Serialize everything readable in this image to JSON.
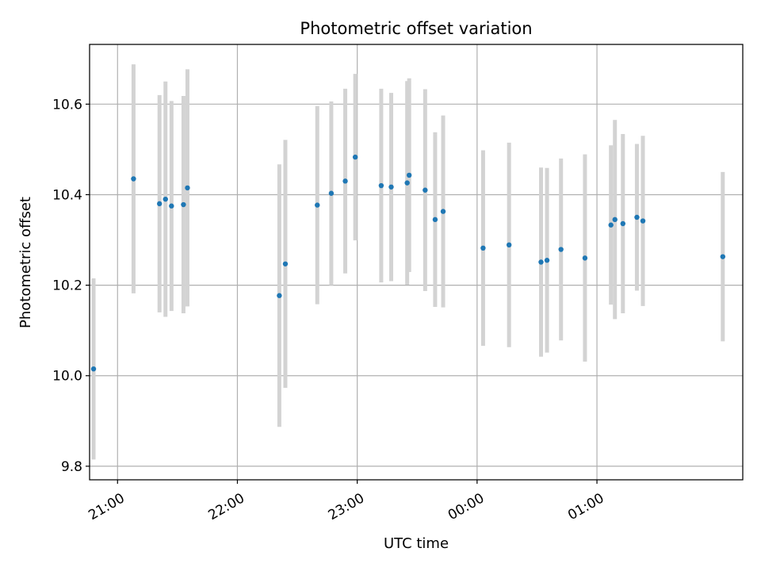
{
  "chart_data": {
    "type": "scatter",
    "title": "Photometric offset variation",
    "xlabel": "UTC time",
    "ylabel": "Photometric offset",
    "x_axis_type": "time",
    "xlim": [
      "20:46",
      "26:13"
    ],
    "ylim": [
      9.77,
      10.732
    ],
    "grid": true,
    "x_ticks": [
      {
        "time": "21:00",
        "label": "21:00"
      },
      {
        "time": "22:00",
        "label": "22:00"
      },
      {
        "time": "23:00",
        "label": "23:00"
      },
      {
        "time": "24:00",
        "label": "00:00"
      },
      {
        "time": "25:00",
        "label": "01:00"
      }
    ],
    "y_ticks": [
      9.8,
      10.0,
      10.2,
      10.4,
      10.6
    ],
    "y_tick_labels": [
      "9.8",
      "10.0",
      "10.2",
      "10.4",
      "10.6"
    ],
    "colors": {
      "marker": "#1f77b4",
      "errorbar": "#d3d3d3",
      "grid": "#b0b0b0"
    },
    "series": [
      {
        "points": [
          {
            "x": "20:48",
            "y": 10.015,
            "err": 0.2
          },
          {
            "x": "21:08",
            "y": 10.435,
            "err": 0.253
          },
          {
            "x": "21:21",
            "y": 10.38,
            "err": 0.24
          },
          {
            "x": "21:24",
            "y": 10.39,
            "err": 0.26
          },
          {
            "x": "21:27",
            "y": 10.375,
            "err": 0.232
          },
          {
            "x": "21:33",
            "y": 10.378,
            "err": 0.24
          },
          {
            "x": "21:35",
            "y": 10.415,
            "err": 0.262
          },
          {
            "x": "22:21",
            "y": 10.177,
            "err": 0.29
          },
          {
            "x": "22:24",
            "y": 10.247,
            "err": 0.274
          },
          {
            "x": "22:40",
            "y": 10.377,
            "err": 0.219
          },
          {
            "x": "22:47",
            "y": 10.403,
            "err": 0.203
          },
          {
            "x": "22:54",
            "y": 10.43,
            "err": 0.204
          },
          {
            "x": "22:59",
            "y": 10.483,
            "err": 0.184
          },
          {
            "x": "23:12",
            "y": 10.42,
            "err": 0.214
          },
          {
            "x": "23:17",
            "y": 10.417,
            "err": 0.208
          },
          {
            "x": "23:25",
            "y": 10.426,
            "err": 0.225
          },
          {
            "x": "23:26",
            "y": 10.443,
            "err": 0.214
          },
          {
            "x": "23:34",
            "y": 10.41,
            "err": 0.223
          },
          {
            "x": "23:39",
            "y": 10.345,
            "err": 0.193
          },
          {
            "x": "23:43",
            "y": 10.363,
            "err": 0.212
          },
          {
            "x": "24:03",
            "y": 10.282,
            "err": 0.216
          },
          {
            "x": "24:16",
            "y": 10.289,
            "err": 0.226
          },
          {
            "x": "24:32",
            "y": 10.251,
            "err": 0.209
          },
          {
            "x": "24:35",
            "y": 10.255,
            "err": 0.204
          },
          {
            "x": "24:42",
            "y": 10.279,
            "err": 0.201
          },
          {
            "x": "24:54",
            "y": 10.26,
            "err": 0.229
          },
          {
            "x": "25:07",
            "y": 10.333,
            "err": 0.176
          },
          {
            "x": "25:09",
            "y": 10.345,
            "err": 0.22
          },
          {
            "x": "25:13",
            "y": 10.336,
            "err": 0.198
          },
          {
            "x": "25:20",
            "y": 10.35,
            "err": 0.162
          },
          {
            "x": "25:23",
            "y": 10.342,
            "err": 0.188
          },
          {
            "x": "26:03",
            "y": 10.263,
            "err": 0.187
          }
        ]
      }
    ]
  }
}
